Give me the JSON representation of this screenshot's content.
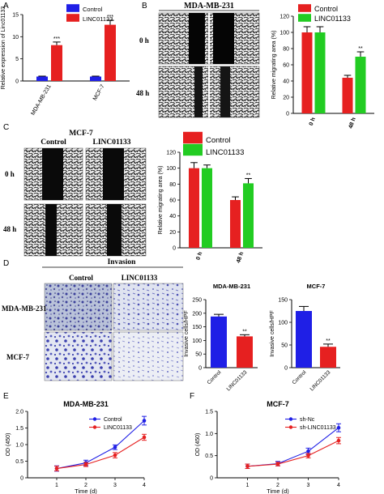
{
  "colors": {
    "control": "#1f1fe6",
    "linc": "#e62020",
    "green": "#22cc22",
    "shnc": "#1f1fe6",
    "shlinc": "#e62020"
  },
  "panels": {
    "A": {
      "letter": "A"
    },
    "B": {
      "letter": "B",
      "title": "MDA-MB-231",
      "row_labels": [
        "0 h",
        "48 h"
      ]
    },
    "C": {
      "letter": "C",
      "col_labels": [
        "Control",
        "LINC01133"
      ],
      "title": "MCF-7",
      "row_labels": [
        "0 h",
        "48 h"
      ]
    },
    "D": {
      "letter": "D",
      "title": "Invasion",
      "col_labels": [
        "Control",
        "LINC01133"
      ],
      "row_labels": [
        "MDA-MB-231",
        "MCF-7"
      ]
    },
    "E": {
      "letter": "E"
    },
    "F": {
      "letter": "F"
    }
  },
  "chart_data": [
    {
      "id": "A",
      "type": "bar",
      "ylabel": "Relative expression of Linc01133",
      "ylim": [
        0,
        15
      ],
      "yticks": [
        0,
        5,
        10,
        15
      ],
      "categories": [
        "MDA-MB-231",
        "MCF-7"
      ],
      "legend": {
        "placement": "top-right"
      },
      "series": [
        {
          "name": "Control",
          "color": "#1f1fe6",
          "values": [
            1.0,
            1.0
          ],
          "errors": [
            0.1,
            0.1
          ]
        },
        {
          "name": "LINC01133",
          "color": "#e62020",
          "values": [
            8.1,
            12.7
          ],
          "errors": [
            0.7,
            1.0
          ],
          "sig": [
            "***",
            "***"
          ]
        }
      ]
    },
    {
      "id": "B",
      "type": "bar",
      "ylabel": "Relative migrating area (%)",
      "ylim": [
        0,
        120
      ],
      "yticks": [
        0,
        20,
        40,
        60,
        80,
        100,
        120
      ],
      "categories": [
        "0 h",
        "48 h"
      ],
      "legend": {
        "placement": "top"
      },
      "series": [
        {
          "name": "Control",
          "color": "#e62020",
          "values": [
            100,
            44
          ],
          "errors": [
            7,
            3
          ]
        },
        {
          "name": "LINC01133",
          "color": "#22cc22",
          "values": [
            100,
            70
          ],
          "errors": [
            7,
            6
          ],
          "sig": [
            "",
            "**"
          ]
        }
      ]
    },
    {
      "id": "C",
      "type": "bar",
      "ylabel": "Relative migrating area (%)",
      "ylim": [
        0,
        120
      ],
      "yticks": [
        0,
        20,
        40,
        60,
        80,
        100,
        120
      ],
      "categories": [
        "0 h",
        "48 h"
      ],
      "legend": {
        "placement": "top"
      },
      "series": [
        {
          "name": "Control",
          "color": "#e62020",
          "values": [
            100,
            60
          ],
          "errors": [
            7,
            4
          ]
        },
        {
          "name": "LINC01133",
          "color": "#22cc22",
          "values": [
            100,
            81
          ],
          "errors": [
            4,
            6
          ],
          "sig": [
            "",
            "**"
          ]
        }
      ]
    },
    {
      "id": "D1",
      "type": "bar",
      "title": "MDA-MB-231",
      "ylabel": "Invasive cells/HPF",
      "ylim": [
        0,
        250
      ],
      "yticks": [
        0,
        50,
        100,
        150,
        200,
        250
      ],
      "categories": [
        "Control",
        "LINC01133"
      ],
      "colors": [
        "#1f1fe6",
        "#e62020"
      ],
      "values": [
        188,
        115
      ],
      "errors": [
        8,
        6
      ],
      "sig": [
        "",
        "**"
      ]
    },
    {
      "id": "D2",
      "type": "bar",
      "title": "MCF-7",
      "ylabel": "Invasive cells/HPF",
      "ylim": [
        0,
        150
      ],
      "yticks": [
        0,
        50,
        100,
        150
      ],
      "categories": [
        "Control",
        "LINC01133"
      ],
      "colors": [
        "#1f1fe6",
        "#e62020"
      ],
      "values": [
        125,
        46
      ],
      "errors": [
        10,
        6
      ],
      "sig": [
        "",
        "**"
      ]
    },
    {
      "id": "E",
      "type": "line",
      "title": "MDA-MB-231",
      "xlabel": "Time (d)",
      "ylabel": "OD (450)",
      "xlim": [
        0,
        4
      ],
      "xticks": [
        1,
        2,
        3,
        4
      ],
      "ylim": [
        0,
        2.0
      ],
      "yticks": [
        0,
        0.5,
        1.0,
        1.5,
        2.0
      ],
      "ytick_labels": [
        "0",
        "0.5",
        "1.0",
        "1.5",
        "2.0"
      ],
      "x": [
        1,
        2,
        3,
        4
      ],
      "legend": {
        "placement": "top-right"
      },
      "series": [
        {
          "name": "Control",
          "color": "#1f1fe6",
          "values": [
            0.28,
            0.45,
            0.92,
            1.72
          ],
          "errors": [
            0.08,
            0.08,
            0.07,
            0.13
          ]
        },
        {
          "name": "LINC01133",
          "color": "#e62020",
          "values": [
            0.28,
            0.4,
            0.68,
            1.22
          ],
          "errors": [
            0.07,
            0.06,
            0.08,
            0.09
          ]
        }
      ]
    },
    {
      "id": "F",
      "type": "line",
      "title": "MCF-7",
      "xlabel": "Time (d)",
      "ylabel": "OD (450)",
      "xlim": [
        0,
        4
      ],
      "xticks": [
        1,
        2,
        3,
        4
      ],
      "ylim": [
        0,
        1.5
      ],
      "yticks": [
        0,
        0.5,
        1.0,
        1.5
      ],
      "ytick_labels": [
        "0",
        "0.5",
        "1.0",
        "1.5"
      ],
      "x": [
        1,
        2,
        3,
        4
      ],
      "legend": {
        "placement": "top-right"
      },
      "series": [
        {
          "name": "sh-Nc",
          "color": "#1f1fe6",
          "values": [
            0.26,
            0.32,
            0.6,
            1.13
          ],
          "errors": [
            0.05,
            0.05,
            0.07,
            0.09
          ]
        },
        {
          "name": "sh-LINC01133",
          "color": "#e62020",
          "values": [
            0.26,
            0.31,
            0.5,
            0.84
          ],
          "errors": [
            0.05,
            0.04,
            0.05,
            0.07
          ]
        }
      ]
    }
  ]
}
